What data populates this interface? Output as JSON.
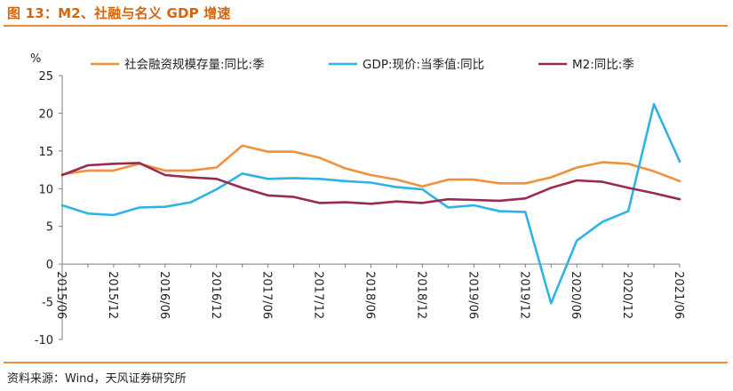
{
  "header": {
    "title": "图 13：M2、社融与名义 GDP 增速"
  },
  "footer": {
    "source": "资料来源：Wind，天风证券研究所"
  },
  "colors": {
    "accent_rule": "#ea8d3a",
    "title": "#d4650f"
  },
  "chart_data": {
    "type": "line",
    "title": "图 13：M2、社融与名义 GDP 增速",
    "ylabel": "%",
    "ylim": [
      -10,
      25
    ],
    "yticks": [
      25,
      20,
      15,
      10,
      5,
      0,
      -5,
      -10
    ],
    "grid": false,
    "legend_position": "top",
    "x": [
      "2015/06",
      "2015/09",
      "2015/12",
      "2016/03",
      "2016/06",
      "2016/09",
      "2016/12",
      "2017/03",
      "2017/06",
      "2017/09",
      "2017/12",
      "2018/03",
      "2018/06",
      "2018/09",
      "2018/12",
      "2019/03",
      "2019/06",
      "2019/09",
      "2019/12",
      "2020/03",
      "2020/06",
      "2020/09",
      "2020/12",
      "2021/03",
      "2021/06"
    ],
    "xtick_labels": [
      "2015/06",
      "2015/12",
      "2016/06",
      "2016/12",
      "2017/06",
      "2017/12",
      "2018/06",
      "2018/12",
      "2019/06",
      "2019/12",
      "2020/06",
      "2020/12",
      "2021/06"
    ],
    "series": [
      {
        "name": "社会融资规模存量:同比:季",
        "color": "#f0913b",
        "values": [
          11.9,
          12.4,
          12.4,
          13.3,
          12.4,
          12.4,
          12.8,
          15.7,
          14.9,
          14.9,
          14.1,
          12.7,
          11.8,
          11.2,
          10.3,
          11.2,
          11.2,
          10.7,
          10.7,
          11.5,
          12.8,
          13.5,
          13.3,
          12.3,
          11.0
        ]
      },
      {
        "name": "GDP:现价:当季值:同比",
        "color": "#2fb3e6",
        "values": [
          7.8,
          6.7,
          6.5,
          7.5,
          7.6,
          8.2,
          9.9,
          12.0,
          11.3,
          11.4,
          11.3,
          11.0,
          10.8,
          10.2,
          9.9,
          7.5,
          7.8,
          7.0,
          6.9,
          -5.2,
          3.1,
          5.6,
          7.0,
          21.2,
          13.6
        ]
      },
      {
        "name": "M2:同比:季",
        "color": "#9b2a4f",
        "values": [
          11.8,
          13.1,
          13.3,
          13.4,
          11.8,
          11.5,
          11.3,
          10.1,
          9.1,
          8.9,
          8.1,
          8.2,
          8.0,
          8.3,
          8.1,
          8.6,
          8.5,
          8.4,
          8.7,
          10.1,
          11.1,
          10.9,
          10.1,
          9.4,
          8.6
        ]
      }
    ]
  }
}
